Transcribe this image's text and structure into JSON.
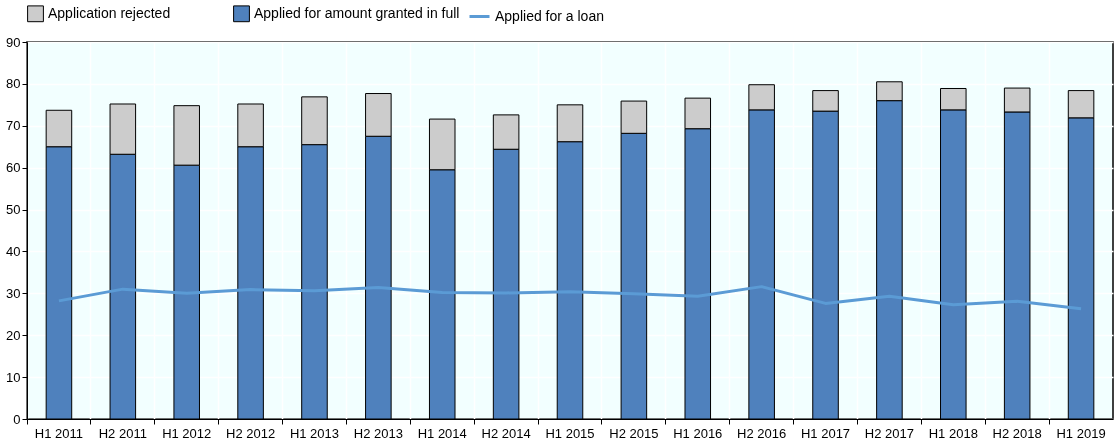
{
  "chart_data": {
    "type": "bar",
    "stacked": true,
    "categories": [
      "H1 2011",
      "H2 2011",
      "H1 2012",
      "H2 2012",
      "H1 2013",
      "H2 2013",
      "H1 2014",
      "H2 2014",
      "H1 2015",
      "H2 2015",
      "H1 2016",
      "H2 2016",
      "H1 2017",
      "H2 2017",
      "H1 2018",
      "H2 2018",
      "H1 2019"
    ],
    "series": [
      {
        "name": "Applied for amount granted in full",
        "color": "#4f81bd",
        "values": [
          65.0,
          63.2,
          60.6,
          65.0,
          65.5,
          67.5,
          59.5,
          64.4,
          66.2,
          68.2,
          69.3,
          73.8,
          73.5,
          76.0,
          73.8,
          73.3,
          71.9
        ]
      },
      {
        "name": "Application rejected",
        "color": "#cccccc",
        "values": [
          8.7,
          12.0,
          14.2,
          10.2,
          11.4,
          10.2,
          12.1,
          8.2,
          8.8,
          7.7,
          7.3,
          6.0,
          4.9,
          4.5,
          5.1,
          5.7,
          6.5
        ]
      },
      {
        "name": "Applied for a loan",
        "type": "line",
        "color": "#5b9bd5",
        "values": [
          28.2,
          31.0,
          30.0,
          30.9,
          30.6,
          31.4,
          30.2,
          30.1,
          30.4,
          29.9,
          29.3,
          31.6,
          27.6,
          29.3,
          27.3,
          28.1,
          26.3
        ]
      }
    ],
    "ylim": [
      0,
      90
    ],
    "yticks": [
      0,
      10,
      20,
      30,
      40,
      50,
      60,
      70,
      80,
      90
    ],
    "grid": true,
    "legend": "top",
    "marker": "none"
  }
}
